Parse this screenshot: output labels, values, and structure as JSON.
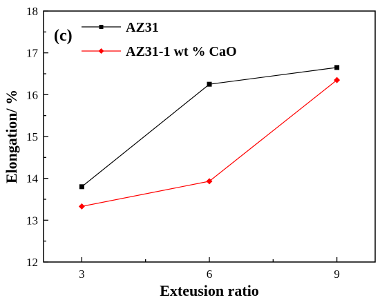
{
  "chart_data": {
    "type": "line",
    "panel_label": "(c)",
    "xlabel": "Exteusion ratio",
    "ylabel": "Elongation/ %",
    "x": [
      3,
      6,
      9
    ],
    "x_ticks": [
      "3",
      "6",
      "9"
    ],
    "xlim": [
      2.1,
      9.9
    ],
    "ylim": [
      12,
      18
    ],
    "y_ticks": [
      "12",
      "13",
      "14",
      "15",
      "16",
      "17",
      "18"
    ],
    "legend_position": "top-left",
    "grid": false,
    "series": [
      {
        "name": "AZ31",
        "values": [
          13.8,
          16.25,
          16.65
        ],
        "color": "#000000",
        "marker": "square"
      },
      {
        "name": "AZ31-1 wt % CaO",
        "values": [
          13.33,
          13.93,
          16.35
        ],
        "color": "#ff0000",
        "marker": "diamond"
      }
    ]
  }
}
